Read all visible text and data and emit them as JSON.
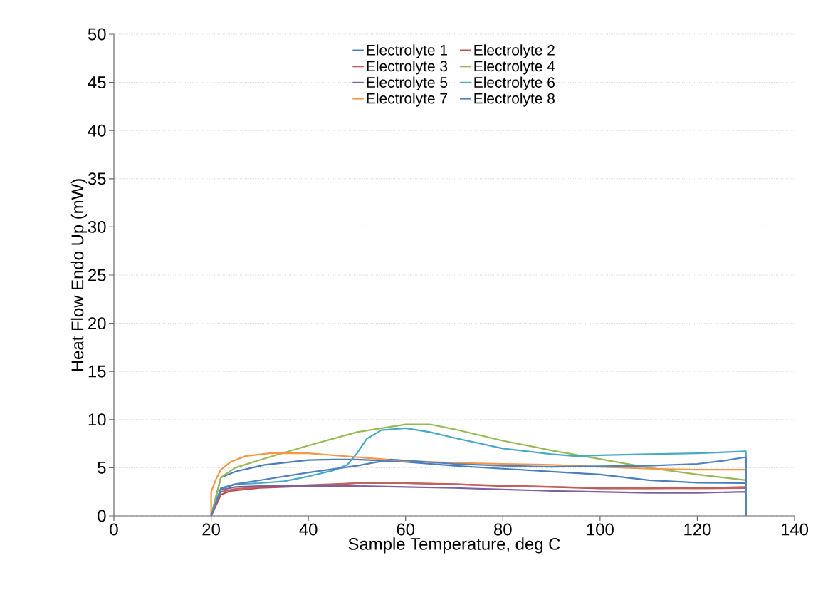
{
  "chart_data": {
    "type": "line",
    "xlabel": "Sample Temperature, deg C",
    "ylabel": "Heat Flow Endo Up (mW)",
    "xlim": [
      0,
      140
    ],
    "xticks": [
      0,
      20,
      40,
      60,
      80,
      100,
      120,
      140
    ],
    "ylim": [
      0,
      50
    ],
    "yticks": [
      0,
      5,
      10,
      15,
      20,
      25,
      30,
      35,
      40,
      45,
      50
    ],
    "grid": "y",
    "legend": "top",
    "line_style": "solid",
    "marker": "none",
    "series": [
      {
        "name": "Electrolyte 1",
        "color": "#4a7ebb",
        "x": [
          20,
          22,
          25,
          31,
          40,
          45,
          50,
          60,
          70,
          80,
          90,
          100,
          110,
          120,
          130,
          130
        ],
        "values": [
          0,
          4.0,
          4.6,
          5.3,
          5.8,
          5.85,
          5.85,
          5.6,
          5.2,
          4.9,
          4.6,
          4.3,
          3.7,
          3.45,
          3.4,
          0
        ]
      },
      {
        "name": "Electrolyte 2",
        "color": "#be4b48",
        "x": [
          20,
          22,
          24,
          30,
          40,
          50,
          60,
          70,
          80,
          90,
          100,
          110,
          120,
          130,
          130
        ],
        "values": [
          0,
          2.2,
          2.6,
          2.9,
          3.1,
          3.4,
          3.4,
          3.3,
          3.1,
          3.0,
          2.85,
          2.85,
          2.9,
          3.0,
          0
        ]
      },
      {
        "name": "Electrolyte 3",
        "color": "#c0625e",
        "x": [
          20,
          22,
          25,
          30,
          40,
          50,
          60,
          80,
          100,
          120,
          130,
          130
        ],
        "values": [
          0,
          2.5,
          2.8,
          3.0,
          3.2,
          3.4,
          3.4,
          3.15,
          2.9,
          2.85,
          2.9,
          0
        ]
      },
      {
        "name": "Electrolyte 4",
        "color": "#98b954",
        "x": [
          20,
          22,
          25,
          30,
          40,
          50,
          60,
          65,
          70,
          80,
          90,
          100,
          110,
          120,
          130,
          130
        ],
        "values": [
          0,
          4.0,
          5.0,
          5.8,
          7.3,
          8.7,
          9.5,
          9.5,
          9.0,
          7.8,
          6.8,
          5.9,
          5.0,
          4.3,
          3.7,
          0
        ]
      },
      {
        "name": "Electrolyte 5",
        "color": "#7d60a0",
        "x": [
          20,
          22,
          25,
          30,
          40,
          50,
          60,
          70,
          80,
          90,
          100,
          110,
          120,
          130,
          130
        ],
        "values": [
          0,
          2.7,
          3.0,
          3.1,
          3.1,
          3.1,
          3.0,
          2.9,
          2.75,
          2.6,
          2.5,
          2.4,
          2.4,
          2.5,
          0
        ]
      },
      {
        "name": "Electrolyte 6",
        "color": "#46aac5",
        "x": [
          20,
          22,
          25,
          30,
          35,
          40,
          45,
          48,
          50,
          52,
          55,
          60,
          65,
          70,
          80,
          90,
          95,
          100,
          110,
          120,
          130,
          130
        ],
        "values": [
          0,
          2.9,
          3.3,
          3.4,
          3.6,
          4.1,
          4.7,
          5.3,
          6.5,
          8.0,
          8.9,
          9.1,
          8.7,
          8.1,
          7.0,
          6.4,
          6.2,
          6.3,
          6.4,
          6.5,
          6.7,
          0
        ]
      },
      {
        "name": "Electrolyte 7",
        "color": "#f79646",
        "x": [
          20,
          20,
          21,
          22,
          24,
          27,
          32,
          40,
          50,
          60,
          70,
          80,
          90,
          100,
          110,
          120,
          130,
          130
        ],
        "values": [
          0,
          2.5,
          3.8,
          4.8,
          5.6,
          6.2,
          6.5,
          6.5,
          6.1,
          5.7,
          5.5,
          5.4,
          5.3,
          5.1,
          4.9,
          4.8,
          4.8,
          0
        ]
      },
      {
        "name": "Electrolyte 8",
        "color": "#4f81bd",
        "x": [
          20,
          22,
          25,
          30,
          40,
          50,
          57,
          60,
          70,
          80,
          90,
          100,
          110,
          120,
          125,
          130,
          130
        ],
        "values": [
          0,
          2.8,
          3.3,
          3.7,
          4.5,
          5.2,
          5.85,
          5.75,
          5.4,
          5.2,
          5.1,
          5.15,
          5.2,
          5.4,
          5.7,
          6.1,
          0
        ]
      }
    ]
  }
}
